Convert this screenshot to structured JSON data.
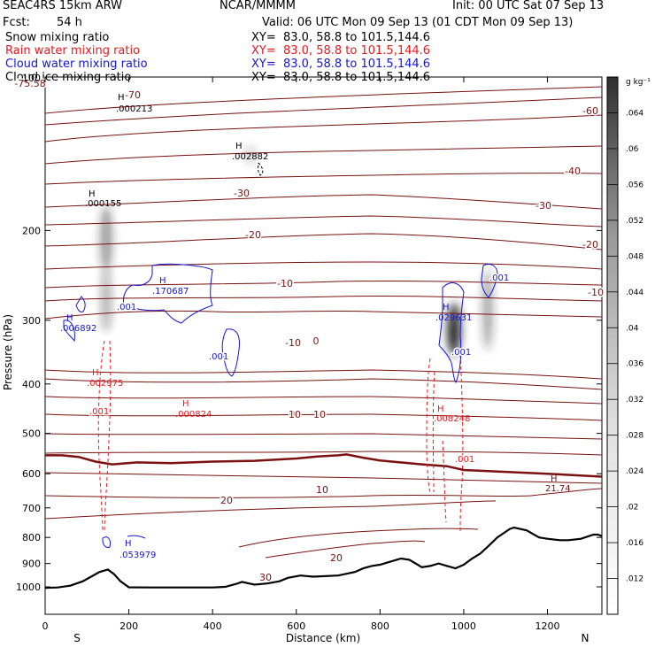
{
  "header": {
    "title_left": "SEAC4RS 15km ARW",
    "org": "NCAR/MMMM",
    "init": "Init: 00 UTC Sat 07 Sep 13",
    "fcst_label": "Fcst:",
    "fcst_value": "54 h",
    "valid": "Valid: 06 UTC Mon 09 Sep 13 (01 CDT Mon 09 Sep 13)",
    "fields": [
      {
        "name": "Snow mixing ratio",
        "xy": "XY=  83.0, 58.8 to 101.5,144.6",
        "color": "#000000"
      },
      {
        "name": "Rain water mixing ratio",
        "xy": "XY=  83.0, 58.8 to 101.5,144.6",
        "color": "#e8191f"
      },
      {
        "name": "Cloud water mixing ratio",
        "xy": "XY=  83.0, 58.8 to 101.5,144.6",
        "color": "#1515d6"
      },
      {
        "name": "Cloud ice mixing ratio",
        "xy": "XY=  83.0, 58.8 to 101.5,144.6",
        "color": "#000000"
      }
    ]
  },
  "chart_data": {
    "type": "cross-section",
    "xlabel": "Distance (km)",
    "ylabel": "Pressure (hPa)",
    "x_ticks": [
      0,
      200,
      400,
      600,
      800,
      1000,
      1200
    ],
    "y_ticks": [
      200,
      300,
      400,
      500,
      600,
      700,
      800,
      900,
      1000
    ],
    "y_top_label": "100",
    "xlim": [
      0,
      1330
    ],
    "ylim": [
      100,
      1050
    ],
    "y_scale": "log-pressure",
    "end_labels": {
      "left": "S",
      "right": "N"
    },
    "colorbar": {
      "unit": "g kg⁻¹",
      "ticks": [
        ".012",
        ".016",
        ".02",
        ".024",
        ".028",
        ".032",
        ".036",
        ".04",
        ".044",
        ".048",
        ".052",
        ".056",
        ".06",
        ".064"
      ]
    },
    "temperature_contours": {
      "color": "#7a1010",
      "labels": [
        "-75.58",
        "-70",
        "-60",
        "-40",
        "-30",
        "-30",
        "-20",
        "-20",
        "-10",
        "-10",
        "-10",
        "0",
        "0",
        "10",
        "10",
        "10",
        "20",
        "20",
        "30",
        "30"
      ]
    },
    "extrema_labels": [
      {
        "text": ".000213",
        "color": "#000000"
      },
      {
        "text": ".002882",
        "color": "#000000"
      },
      {
        "text": ".000155",
        "color": "#000000"
      },
      {
        "text": ".170687",
        "color": "#1515d6"
      },
      {
        "text": ".006892",
        "color": "#1515d6"
      },
      {
        "text": ".029631",
        "color": "#1515d6"
      },
      {
        "text": ".053979",
        "color": "#1515d6"
      },
      {
        "text": ".002975",
        "color": "#e8191f"
      },
      {
        "text": ".000824",
        "color": "#e8191f"
      },
      {
        "text": ".008248",
        "color": "#e8191f"
      },
      {
        "text": "21.74",
        "color": "#7a1010"
      }
    ],
    "contour_values": [
      {
        "text": ".001",
        "color": "#1515d6"
      },
      {
        "text": ".001",
        "color": "#1515d6"
      },
      {
        "text": ".001",
        "color": "#1515d6"
      },
      {
        "text": ".001",
        "color": "#1515d6"
      },
      {
        "text": ".001",
        "color": "#e8191f"
      },
      {
        "text": ".001",
        "color": "#e8191f"
      }
    ],
    "terrain_pressure": [
      [
        0,
        1005
      ],
      [
        30,
        1003
      ],
      [
        60,
        995
      ],
      [
        90,
        975
      ],
      [
        110,
        955
      ],
      [
        130,
        935
      ],
      [
        150,
        925
      ],
      [
        165,
        945
      ],
      [
        180,
        975
      ],
      [
        200,
        1002
      ],
      [
        250,
        1003
      ],
      [
        300,
        1003
      ],
      [
        400,
        1003
      ],
      [
        430,
        1000
      ],
      [
        460,
        985
      ],
      [
        470,
        978
      ],
      [
        500,
        990
      ],
      [
        530,
        985
      ],
      [
        560,
        975
      ],
      [
        580,
        960
      ],
      [
        610,
        950
      ],
      [
        640,
        955
      ],
      [
        700,
        950
      ],
      [
        740,
        935
      ],
      [
        760,
        920
      ],
      [
        780,
        910
      ],
      [
        800,
        905
      ],
      [
        830,
        890
      ],
      [
        850,
        880
      ],
      [
        870,
        885
      ],
      [
        890,
        905
      ],
      [
        900,
        915
      ],
      [
        920,
        910
      ],
      [
        940,
        900
      ],
      [
        960,
        910
      ],
      [
        980,
        920
      ],
      [
        1000,
        905
      ],
      [
        1020,
        880
      ],
      [
        1040,
        860
      ],
      [
        1060,
        830
      ],
      [
        1080,
        800
      ],
      [
        1110,
        770
      ],
      [
        1120,
        765
      ],
      [
        1150,
        775
      ],
      [
        1180,
        800
      ],
      [
        1200,
        805
      ],
      [
        1230,
        810
      ],
      [
        1250,
        810
      ],
      [
        1280,
        805
      ],
      [
        1310,
        790
      ],
      [
        1320,
        790
      ],
      [
        1330,
        795
      ]
    ],
    "freezing_level": [
      [
        0,
        552
      ],
      [
        40,
        552
      ],
      [
        80,
        556
      ],
      [
        120,
        568
      ],
      [
        160,
        575
      ],
      [
        220,
        570
      ],
      [
        300,
        572
      ],
      [
        400,
        568
      ],
      [
        500,
        566
      ],
      [
        600,
        560
      ],
      [
        650,
        555
      ],
      [
        700,
        552
      ],
      [
        720,
        550
      ],
      [
        760,
        558
      ],
      [
        800,
        565
      ],
      [
        900,
        575
      ],
      [
        960,
        580
      ],
      [
        1000,
        590
      ],
      [
        1100,
        595
      ],
      [
        1200,
        600
      ],
      [
        1330,
        608
      ]
    ]
  }
}
